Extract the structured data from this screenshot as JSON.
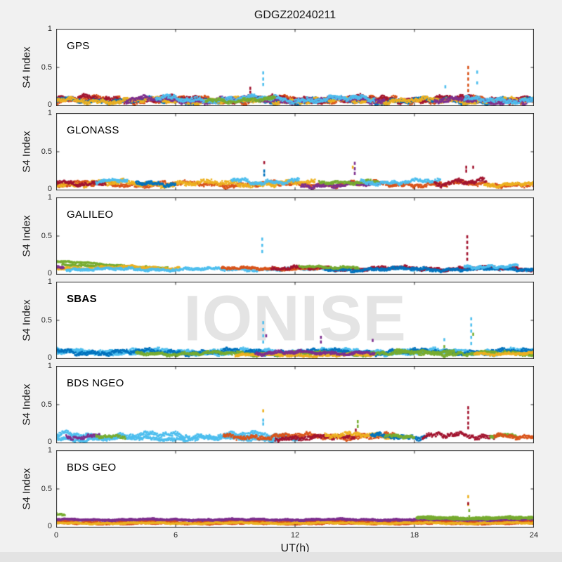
{
  "title": "GDGZ20240211",
  "watermark": "IONISE",
  "axes": {
    "xlabel": "UT(h)",
    "ylabel": "S4 Index",
    "xticks": [
      "0",
      "6",
      "12",
      "18",
      "24"
    ],
    "yticks": [
      "0",
      "0.5",
      "1"
    ],
    "xlim": [
      0,
      24
    ],
    "ylim": [
      0,
      1
    ],
    "grid": false
  },
  "figure": {
    "background": "#f1f1f1",
    "panel_background": "#ffffff",
    "axis_color": "#262626",
    "watermark_color": "#e4e4e4"
  },
  "palette": {
    "blue": "#0072BD",
    "orange": "#D95319",
    "yellow": "#EDB120",
    "purple": "#7E2F8E",
    "green": "#77AC30",
    "lightblue": "#4DBEEE",
    "darkred": "#A2142F"
  },
  "chart_data": {
    "type": "scatter",
    "x_unit": "hours UT, 0-24",
    "y_unit": "S4 scintillation index, 0-1",
    "panels": [
      {
        "label": "GPS",
        "bold": false,
        "series": [
          {
            "color": "orange",
            "t0": 0,
            "t1": 24,
            "mean": 0.08,
            "amp": 0.045,
            "jitter": 0.05
          },
          {
            "color": "darkred",
            "t0": 0,
            "t1": 24,
            "mean": 0.09,
            "amp": 0.05,
            "jitter": 0.05
          },
          {
            "color": "blue",
            "t0": 0,
            "t1": 24,
            "mean": 0.07,
            "amp": 0.04,
            "jitter": 0.05
          },
          {
            "color": "yellow",
            "t0": 0,
            "t1": 24,
            "mean": 0.07,
            "amp": 0.04,
            "jitter": 0.045
          },
          {
            "color": "purple",
            "t0": 3.5,
            "t1": 16.5,
            "mean": 0.08,
            "amp": 0.045,
            "jitter": 0.05
          },
          {
            "color": "lightblue",
            "t0": 5,
            "t1": 16,
            "mean": 0.09,
            "amp": 0.05,
            "jitter": 0.05
          },
          {
            "color": "green",
            "t0": 7.5,
            "t1": 11,
            "mean": 0.08,
            "amp": 0.04,
            "jitter": 0.04
          },
          {
            "color": "purple",
            "t0": 19,
            "t1": 24,
            "mean": 0.07,
            "amp": 0.04,
            "jitter": 0.05
          },
          {
            "color": "lightblue",
            "t0": 20.5,
            "t1": 24,
            "mean": 0.08,
            "amp": 0.04,
            "jitter": 0.05
          }
        ],
        "spikes": [
          {
            "t": 9.75,
            "color": "darkred",
            "values": [
              0.18,
              0.23
            ]
          },
          {
            "t": 10.4,
            "color": "lightblue",
            "values": [
              0.28,
              0.35,
              0.43
            ]
          },
          {
            "t": 19.55,
            "color": "lightblue",
            "values": [
              0.25
            ]
          },
          {
            "t": 20.7,
            "color": "orange",
            "values": [
              0.2,
              0.27,
              0.35,
              0.42,
              0.5
            ]
          },
          {
            "t": 21.15,
            "color": "lightblue",
            "values": [
              0.3,
              0.44
            ]
          }
        ]
      },
      {
        "label": "GLONASS",
        "bold": false,
        "series": [
          {
            "color": "orange",
            "t0": 0,
            "t1": 24,
            "mean": 0.08,
            "amp": 0.04,
            "jitter": 0.045
          },
          {
            "color": "yellow",
            "t0": 0,
            "t1": 13,
            "mean": 0.09,
            "amp": 0.045,
            "jitter": 0.05
          },
          {
            "color": "darkred",
            "t0": 0,
            "t1": 2.5,
            "mean": 0.1,
            "amp": 0.04,
            "jitter": 0.04
          },
          {
            "color": "lightblue",
            "t0": 2,
            "t1": 3.6,
            "mean": 0.12,
            "amp": 0.03,
            "jitter": 0.035
          },
          {
            "color": "blue",
            "t0": 4,
            "t1": 6,
            "mean": 0.09,
            "amp": 0.035,
            "jitter": 0.04
          },
          {
            "color": "lightblue",
            "t0": 8.8,
            "t1": 12.2,
            "mean": 0.12,
            "amp": 0.05,
            "jitter": 0.04
          },
          {
            "color": "purple",
            "t0": 12.3,
            "t1": 16.3,
            "mean": 0.07,
            "amp": 0.035,
            "jitter": 0.04
          },
          {
            "color": "green",
            "t0": 13.2,
            "t1": 16.2,
            "mean": 0.11,
            "amp": 0.03,
            "jitter": 0.035
          },
          {
            "color": "lightblue",
            "t0": 15.3,
            "t1": 19.3,
            "mean": 0.11,
            "amp": 0.04,
            "jitter": 0.04
          },
          {
            "color": "darkred",
            "t0": 19,
            "t1": 21.6,
            "mean": 0.1,
            "amp": 0.05,
            "jitter": 0.05
          },
          {
            "color": "yellow",
            "t0": 21.5,
            "t1": 24,
            "mean": 0.08,
            "amp": 0.035,
            "jitter": 0.04
          }
        ],
        "spikes": [
          {
            "t": 10.45,
            "color": "darkred",
            "values": [
              0.36
            ]
          },
          {
            "t": 10.45,
            "color": "blue",
            "values": [
              0.2,
              0.25
            ]
          },
          {
            "t": 14.9,
            "color": "yellow",
            "values": [
              0.3
            ]
          },
          {
            "t": 15.0,
            "color": "purple",
            "values": [
              0.22,
              0.28,
              0.35
            ]
          },
          {
            "t": 20.6,
            "color": "darkred",
            "values": [
              0.25,
              0.3
            ]
          },
          {
            "t": 20.95,
            "color": "darkred",
            "values": [
              0.3
            ]
          }
        ]
      },
      {
        "label": "GALILEO",
        "bold": false,
        "series": [
          {
            "color": "green",
            "t0": 0,
            "t1": 5.6,
            "mean": 0.17,
            "mean_end": 0.08,
            "amp": 0.015,
            "jitter": 0.02
          },
          {
            "color": "green",
            "t0": 0.3,
            "t1": 4,
            "mean": 0.13,
            "mean_end": 0.1,
            "amp": 0.012,
            "jitter": 0.02
          },
          {
            "color": "yellow",
            "t0": 0,
            "t1": 6.2,
            "mean": 0.09,
            "amp": 0.025,
            "jitter": 0.03
          },
          {
            "color": "purple",
            "t0": 0,
            "t1": 0.4,
            "mean": 0.1,
            "amp": 0.02,
            "jitter": 0.03
          },
          {
            "color": "lightblue",
            "t0": 0.5,
            "t1": 24,
            "mean": 0.07,
            "amp": 0.022,
            "jitter": 0.03
          },
          {
            "color": "orange",
            "t0": 8.3,
            "t1": 13.8,
            "mean": 0.08,
            "amp": 0.02,
            "jitter": 0.03
          },
          {
            "color": "darkred",
            "t0": 10.8,
            "t1": 24,
            "mean": 0.08,
            "amp": 0.028,
            "jitter": 0.035
          },
          {
            "color": "blue",
            "t0": 13.5,
            "t1": 24,
            "mean": 0.07,
            "amp": 0.028,
            "jitter": 0.035
          },
          {
            "color": "green",
            "t0": 12.2,
            "t1": 15.2,
            "mean": 0.1,
            "amp": 0.02,
            "jitter": 0.025
          },
          {
            "color": "lightblue",
            "t0": 20.5,
            "t1": 23.2,
            "mean": 0.11,
            "amp": 0.028,
            "jitter": 0.03
          }
        ],
        "spikes": [
          {
            "t": 10.35,
            "color": "lightblue",
            "values": [
              0.3,
              0.38,
              0.46
            ]
          },
          {
            "t": 20.65,
            "color": "darkred",
            "values": [
              0.2,
              0.27,
              0.35,
              0.42,
              0.49
            ]
          }
        ]
      },
      {
        "label": "SBAS",
        "bold": true,
        "series": [
          {
            "color": "lightblue",
            "t0": 0,
            "t1": 24,
            "mean": 0.1,
            "amp": 0.035,
            "jitter": 0.045
          },
          {
            "color": "lightblue",
            "t0": 0,
            "t1": 24,
            "mean": 0.08,
            "amp": 0.03,
            "jitter": 0.04
          },
          {
            "color": "blue",
            "t0": 0,
            "t1": 24,
            "mean": 0.09,
            "amp": 0.04,
            "jitter": 0.045
          },
          {
            "color": "green",
            "t0": 4,
            "t1": 24,
            "mean": 0.07,
            "amp": 0.03,
            "jitter": 0.035
          },
          {
            "color": "yellow",
            "t0": 9,
            "t1": 16,
            "mean": 0.05,
            "amp": 0.02,
            "jitter": 0.03
          },
          {
            "color": "purple",
            "t0": 10,
            "t1": 16,
            "mean": 0.08,
            "amp": 0.03,
            "jitter": 0.035
          },
          {
            "color": "green",
            "t0": 17,
            "t1": 20,
            "mean": 0.1,
            "amp": 0.025,
            "jitter": 0.03
          },
          {
            "color": "yellow",
            "t0": 21,
            "t1": 24,
            "mean": 0.07,
            "amp": 0.02,
            "jitter": 0.03
          }
        ],
        "spikes": [
          {
            "t": 10.4,
            "color": "lightblue",
            "values": [
              0.22,
              0.3,
              0.38,
              0.47
            ]
          },
          {
            "t": 10.55,
            "color": "purple",
            "values": [
              0.3
            ]
          },
          {
            "t": 13.3,
            "color": "purple",
            "values": [
              0.22,
              0.28
            ]
          },
          {
            "t": 15.9,
            "color": "purple",
            "values": [
              0.24
            ]
          },
          {
            "t": 19.5,
            "color": "lightblue",
            "values": [
              0.25
            ]
          },
          {
            "t": 19.5,
            "color": "green",
            "values": [
              0.16
            ]
          },
          {
            "t": 20.85,
            "color": "lightblue",
            "values": [
              0.2,
              0.28,
              0.36,
              0.44,
              0.52
            ]
          },
          {
            "t": 20.95,
            "color": "green",
            "values": [
              0.32
            ]
          }
        ]
      },
      {
        "label": "BDS NGEO",
        "bold": false,
        "series": [
          {
            "color": "lightblue",
            "t0": 0,
            "t1": 12.3,
            "mean": 0.1,
            "amp": 0.05,
            "jitter": 0.05
          },
          {
            "color": "lightblue",
            "t0": 0,
            "t1": 12.3,
            "mean": 0.06,
            "amp": 0.03,
            "jitter": 0.04
          },
          {
            "color": "purple",
            "t0": 0.5,
            "t1": 2.2,
            "mean": 0.09,
            "amp": 0.04,
            "jitter": 0.04
          },
          {
            "color": "green",
            "t0": 2,
            "t1": 3.5,
            "mean": 0.08,
            "amp": 0.03,
            "jitter": 0.035
          },
          {
            "color": "orange",
            "t0": 8.4,
            "t1": 17,
            "mean": 0.09,
            "amp": 0.04,
            "jitter": 0.05
          },
          {
            "color": "darkred",
            "t0": 11,
            "t1": 15,
            "mean": 0.07,
            "amp": 0.035,
            "jitter": 0.045
          },
          {
            "color": "yellow",
            "t0": 13.5,
            "t1": 17,
            "mean": 0.1,
            "amp": 0.04,
            "jitter": 0.045
          },
          {
            "color": "blue",
            "t0": 15.8,
            "t1": 18.6,
            "mean": 0.09,
            "amp": 0.04,
            "jitter": 0.045
          },
          {
            "color": "green",
            "t0": 16.5,
            "t1": 18,
            "mean": 0.08,
            "amp": 0.03,
            "jitter": 0.035
          },
          {
            "color": "darkred",
            "t0": 18.4,
            "t1": 22,
            "mean": 0.09,
            "amp": 0.05,
            "jitter": 0.05
          },
          {
            "color": "green",
            "t0": 21.8,
            "t1": 23.2,
            "mean": 0.09,
            "amp": 0.03,
            "jitter": 0.035
          },
          {
            "color": "orange",
            "t0": 22,
            "t1": 24,
            "mean": 0.08,
            "amp": 0.035,
            "jitter": 0.045
          }
        ],
        "spikes": [
          {
            "t": 10.4,
            "color": "yellow",
            "values": [
              0.42
            ]
          },
          {
            "t": 10.4,
            "color": "lightblue",
            "values": [
              0.25,
              0.3
            ]
          },
          {
            "t": 15.05,
            "color": "darkred",
            "values": [
              0.17
            ]
          },
          {
            "t": 15.15,
            "color": "green",
            "values": [
              0.22,
              0.28
            ]
          },
          {
            "t": 20.7,
            "color": "darkred",
            "values": [
              0.2,
              0.26,
              0.33,
              0.4,
              0.46
            ]
          }
        ]
      },
      {
        "label": "BDS GEO",
        "bold": false,
        "series": [
          {
            "color": "green",
            "t0": 0,
            "t1": 0.45,
            "mean": 0.15,
            "amp": 0.03,
            "jitter": 0.03
          },
          {
            "color": "purple",
            "t0": 0,
            "t1": 24,
            "mean": 0.105,
            "amp": 0.012,
            "jitter": 0.016
          },
          {
            "color": "purple",
            "t0": 0,
            "t1": 24,
            "mean": 0.092,
            "amp": 0.01,
            "jitter": 0.014
          },
          {
            "color": "orange",
            "t0": 0,
            "t1": 24,
            "mean": 0.065,
            "amp": 0.014,
            "jitter": 0.016
          },
          {
            "color": "orange",
            "t0": 0,
            "t1": 24,
            "mean": 0.052,
            "amp": 0.012,
            "jitter": 0.014
          },
          {
            "color": "yellow",
            "t0": 0,
            "t1": 24,
            "mean": 0.057,
            "amp": 0.012,
            "jitter": 0.016
          },
          {
            "color": "green",
            "t0": 18.1,
            "t1": 24,
            "mean": 0.13,
            "amp": 0.014,
            "jitter": 0.018
          },
          {
            "color": "green",
            "t0": 18.1,
            "t1": 24,
            "mean": 0.115,
            "amp": 0.012,
            "jitter": 0.015
          }
        ],
        "spikes": [
          {
            "t": 20.7,
            "color": "yellow",
            "values": [
              0.4,
              0.3
            ]
          },
          {
            "t": 20.7,
            "color": "darkred",
            "values": [
              0.31
            ]
          },
          {
            "t": 20.75,
            "color": "green",
            "values": [
              0.22,
              0.14
            ]
          }
        ]
      }
    ]
  }
}
